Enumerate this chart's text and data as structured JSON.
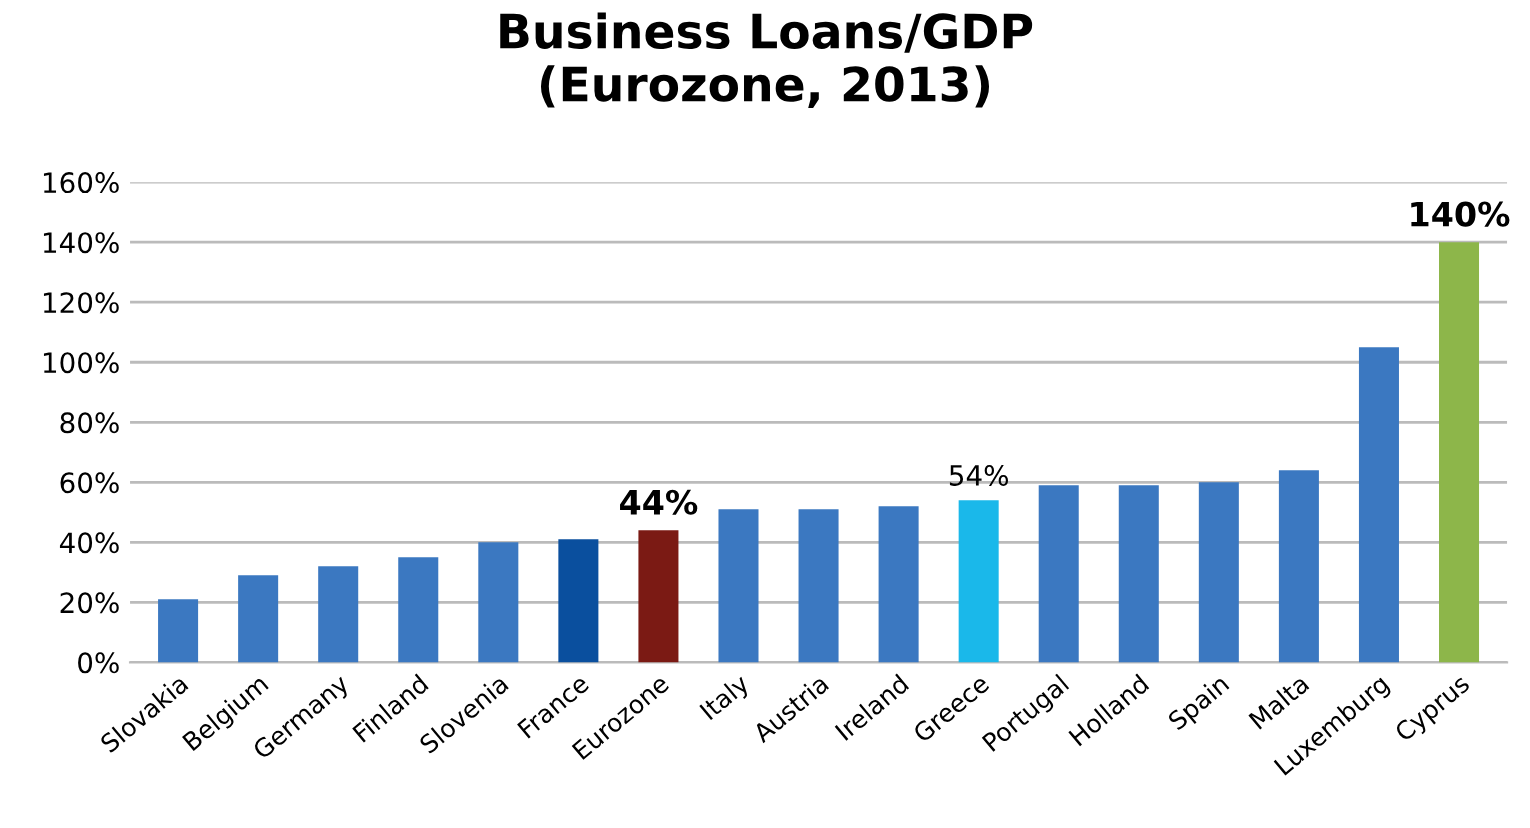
{
  "chart_data": {
    "type": "bar",
    "title": "Business Loans/GDP\n(Eurozone, 2013)",
    "categories": [
      "Slovakia",
      "Belgium",
      "Germany",
      "Finland",
      "Slovenia",
      "France",
      "Eurozone",
      "Italy",
      "Austria",
      "Ireland",
      "Greece",
      "Portugal",
      "Holland",
      "Spain",
      "Malta",
      "Luxemburg",
      "Cyprus"
    ],
    "values": [
      21,
      29,
      32,
      35,
      40,
      41,
      44,
      51,
      51,
      52,
      54,
      59,
      59,
      60,
      64,
      105,
      140
    ],
    "colors": [
      "#3b78c1",
      "#3b78c1",
      "#3b78c1",
      "#3b78c1",
      "#3b78c1",
      "#0a4f9e",
      "#7b1a14",
      "#3b78c1",
      "#3b78c1",
      "#3b78c1",
      "#1ab8ea",
      "#3b78c1",
      "#3b78c1",
      "#3b78c1",
      "#3b78c1",
      "#3b78c1",
      "#8db64a"
    ],
    "value_labels": [
      null,
      null,
      null,
      null,
      null,
      null,
      "44%",
      null,
      null,
      null,
      "54%",
      null,
      null,
      null,
      null,
      null,
      "140%"
    ],
    "ylim": [
      0,
      160
    ],
    "yticks": [
      {
        "value": 0,
        "label": "0%"
      },
      {
        "value": 20,
        "label": "20%"
      },
      {
        "value": 40,
        "label": "40%"
      },
      {
        "value": 60,
        "label": "60%"
      },
      {
        "value": 80,
        "label": "80%"
      },
      {
        "value": 100,
        "label": "100%"
      },
      {
        "value": 120,
        "label": "120%"
      },
      {
        "value": 140,
        "label": "140%"
      },
      {
        "value": 160,
        "label": "160%"
      }
    ],
    "grid": "y"
  }
}
